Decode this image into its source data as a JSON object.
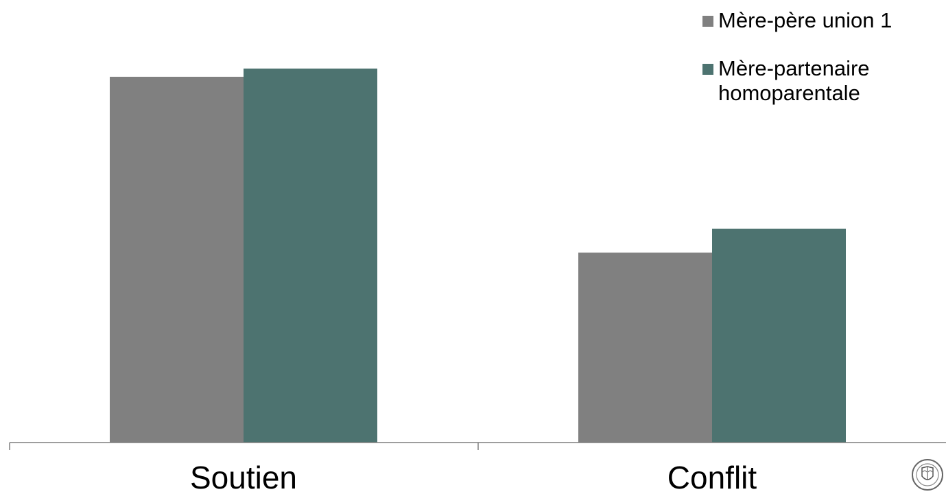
{
  "chart_data": {
    "type": "bar",
    "categories": [
      "Soutien",
      "Conflit"
    ],
    "series": [
      {
        "name": "Mère-père union 1",
        "color": "#808080",
        "values": [
          4.45,
          2.31
        ]
      },
      {
        "name": "Mère-partenaire homoparentale",
        "color": "#4d7370",
        "values": [
          4.55,
          2.6
        ]
      }
    ],
    "ylim": [
      0,
      5
    ],
    "grid": false,
    "legend_position": "top-right"
  },
  "logo": {
    "name": "university-seal-icon"
  }
}
